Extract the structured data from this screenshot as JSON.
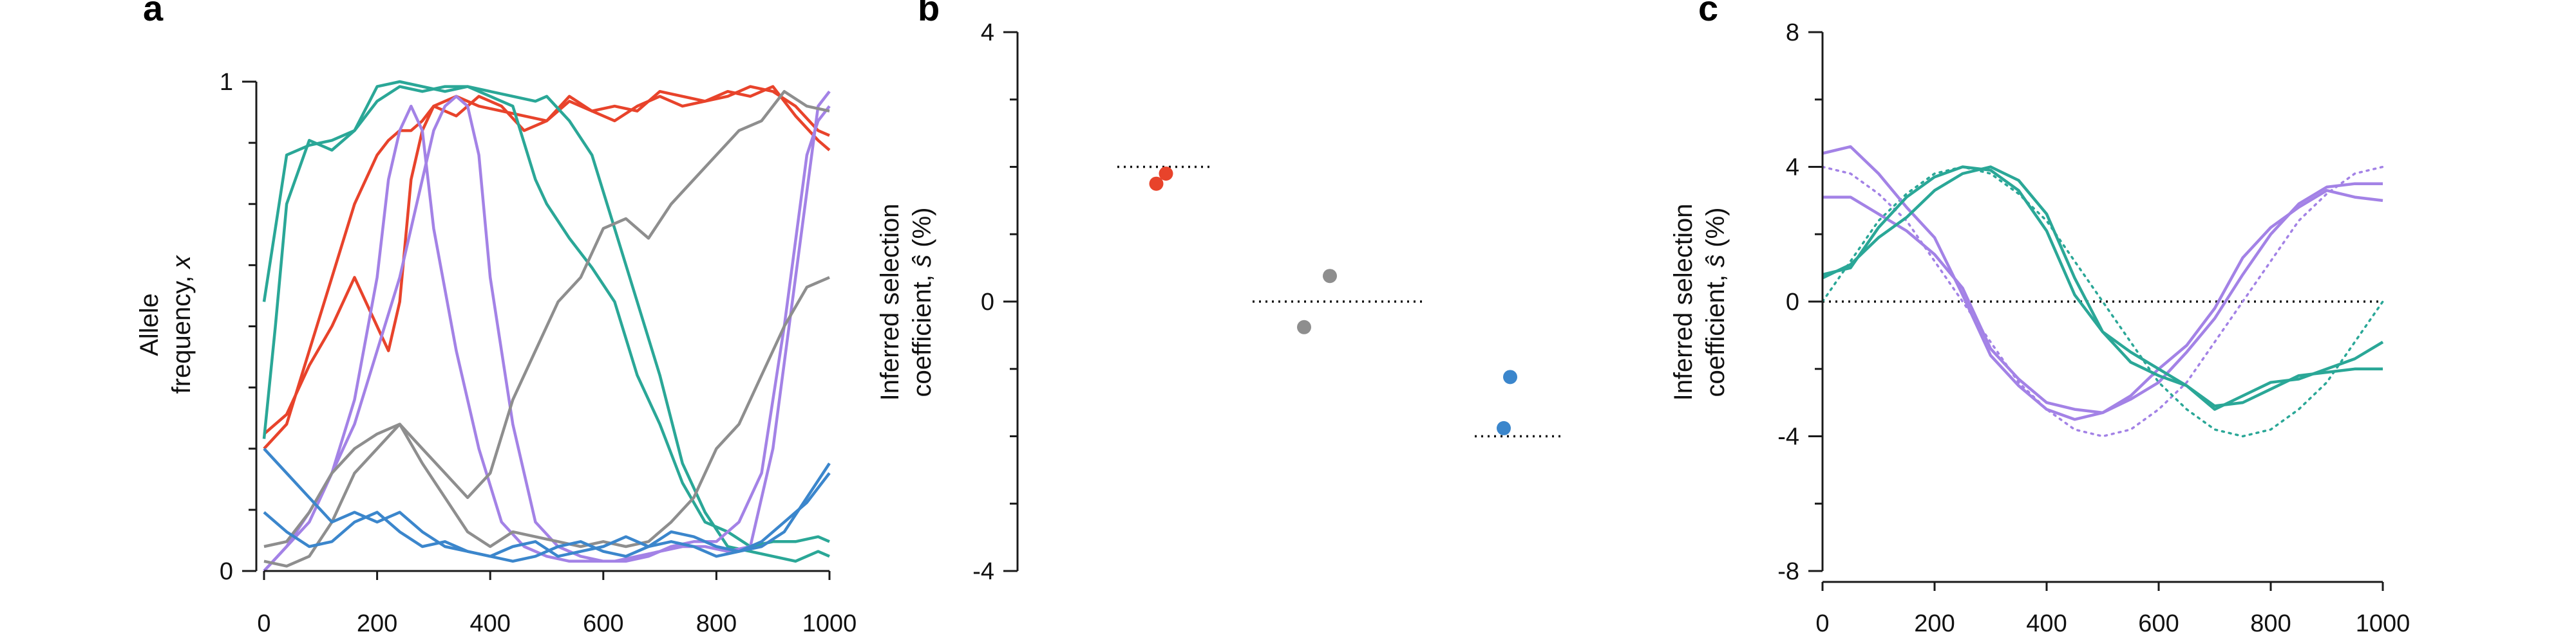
{
  "colors": {
    "red": "#e8432b",
    "teal": "#2aa797",
    "purple": "#a382e6",
    "gray": "#8e8e8e",
    "blue": "#3b86cc",
    "axis": "#1a1a1a"
  },
  "chart_data": [
    {
      "panel": "a",
      "type": "line",
      "ylabel_line1": "Allele",
      "ylabel_line2": "frequency, ",
      "ylabel_var": "x",
      "xlim": [
        0,
        1000
      ],
      "ylim": [
        0,
        1
      ],
      "xticks": [
        0,
        200,
        400,
        600,
        800,
        1000
      ],
      "yticks": [
        0,
        1
      ],
      "ytick_labels": [
        "0",
        "1"
      ],
      "series": [
        {
          "color": "red",
          "x": [
            0,
            40,
            80,
            120,
            160,
            200,
            220,
            240,
            260,
            280,
            300,
            340,
            380,
            420,
            460,
            500,
            540,
            580,
            620,
            660,
            700,
            740,
            780,
            820,
            860,
            900,
            940,
            980,
            1000
          ],
          "y": [
            0.25,
            0.3,
            0.45,
            0.6,
            0.75,
            0.85,
            0.88,
            0.9,
            0.9,
            0.92,
            0.95,
            0.97,
            0.95,
            0.94,
            0.93,
            0.92,
            0.96,
            0.94,
            0.92,
            0.95,
            0.97,
            0.95,
            0.96,
            0.97,
            0.99,
            0.98,
            0.95,
            0.9,
            0.89
          ]
        },
        {
          "color": "red",
          "x": [
            0,
            40,
            80,
            120,
            160,
            200,
            220,
            240,
            260,
            280,
            300,
            340,
            380,
            420,
            460,
            500,
            540,
            580,
            620,
            660,
            700,
            740,
            780,
            820,
            860,
            900,
            940,
            980,
            1000
          ],
          "y": [
            0.28,
            0.32,
            0.42,
            0.5,
            0.6,
            0.5,
            0.45,
            0.55,
            0.8,
            0.9,
            0.95,
            0.93,
            0.97,
            0.95,
            0.9,
            0.92,
            0.97,
            0.94,
            0.95,
            0.94,
            0.98,
            0.97,
            0.96,
            0.98,
            0.97,
            0.99,
            0.93,
            0.88,
            0.86
          ]
        },
        {
          "color": "teal",
          "x": [
            0,
            20,
            40,
            80,
            120,
            160,
            200,
            240,
            280,
            320,
            360,
            400,
            440,
            480,
            500,
            540,
            580,
            620,
            660,
            700,
            740,
            780,
            820,
            860,
            900,
            940,
            980,
            1000
          ],
          "y": [
            0.55,
            0.7,
            0.85,
            0.87,
            0.88,
            0.9,
            0.99,
            1.0,
            0.99,
            0.98,
            0.99,
            0.97,
            0.95,
            0.8,
            0.75,
            0.68,
            0.62,
            0.55,
            0.4,
            0.3,
            0.18,
            0.1,
            0.08,
            0.05,
            0.06,
            0.06,
            0.07,
            0.06
          ]
        },
        {
          "color": "teal",
          "x": [
            0,
            20,
            40,
            80,
            120,
            160,
            200,
            240,
            280,
            320,
            360,
            400,
            440,
            480,
            500,
            540,
            580,
            620,
            660,
            700,
            740,
            780,
            820,
            860,
            900,
            940,
            980,
            1000
          ],
          "y": [
            0.27,
            0.5,
            0.75,
            0.88,
            0.86,
            0.9,
            0.96,
            0.99,
            0.98,
            0.99,
            0.99,
            0.98,
            0.97,
            0.96,
            0.97,
            0.92,
            0.85,
            0.7,
            0.55,
            0.4,
            0.22,
            0.12,
            0.05,
            0.04,
            0.03,
            0.02,
            0.04,
            0.03
          ]
        },
        {
          "color": "purple",
          "x": [
            0,
            40,
            80,
            120,
            160,
            200,
            220,
            240,
            260,
            280,
            300,
            340,
            380,
            420,
            460,
            500,
            540,
            580,
            620,
            660,
            700,
            740,
            780,
            820,
            860,
            900,
            940,
            980,
            1000
          ],
          "y": [
            0.0,
            0.05,
            0.1,
            0.2,
            0.35,
            0.6,
            0.8,
            0.9,
            0.95,
            0.9,
            0.7,
            0.45,
            0.25,
            0.1,
            0.05,
            0.03,
            0.02,
            0.02,
            0.02,
            0.03,
            0.04,
            0.05,
            0.05,
            0.04,
            0.05,
            0.25,
            0.6,
            0.95,
            0.98
          ]
        },
        {
          "color": "purple",
          "x": [
            0,
            40,
            80,
            120,
            160,
            200,
            240,
            280,
            300,
            320,
            340,
            360,
            380,
            400,
            440,
            480,
            520,
            560,
            600,
            640,
            680,
            720,
            760,
            800,
            840,
            880,
            920,
            960,
            980,
            1000
          ],
          "y": [
            0.0,
            0.05,
            0.12,
            0.2,
            0.3,
            0.45,
            0.6,
            0.8,
            0.9,
            0.95,
            0.97,
            0.95,
            0.85,
            0.6,
            0.3,
            0.1,
            0.05,
            0.03,
            0.02,
            0.02,
            0.03,
            0.05,
            0.06,
            0.06,
            0.1,
            0.2,
            0.5,
            0.85,
            0.92,
            0.95
          ]
        },
        {
          "color": "gray",
          "x": [
            0,
            40,
            80,
            120,
            160,
            200,
            240,
            280,
            320,
            360,
            400,
            440,
            480,
            520,
            560,
            600,
            640,
            680,
            720,
            760,
            800,
            840,
            880,
            920,
            960,
            1000
          ],
          "y": [
            0.02,
            0.01,
            0.03,
            0.1,
            0.2,
            0.25,
            0.3,
            0.25,
            0.2,
            0.15,
            0.2,
            0.35,
            0.45,
            0.55,
            0.6,
            0.7,
            0.72,
            0.68,
            0.75,
            0.8,
            0.85,
            0.9,
            0.92,
            0.98,
            0.95,
            0.94
          ]
        },
        {
          "color": "gray",
          "x": [
            0,
            40,
            80,
            120,
            160,
            200,
            240,
            280,
            320,
            360,
            400,
            440,
            480,
            520,
            560,
            600,
            640,
            680,
            720,
            760,
            800,
            840,
            880,
            920,
            960,
            1000
          ],
          "y": [
            0.05,
            0.06,
            0.12,
            0.2,
            0.25,
            0.28,
            0.3,
            0.22,
            0.15,
            0.08,
            0.05,
            0.08,
            0.07,
            0.06,
            0.05,
            0.06,
            0.05,
            0.06,
            0.1,
            0.15,
            0.25,
            0.3,
            0.4,
            0.5,
            0.58,
            0.6
          ]
        },
        {
          "color": "blue",
          "x": [
            0,
            40,
            80,
            120,
            160,
            200,
            240,
            280,
            320,
            360,
            400,
            440,
            480,
            520,
            560,
            600,
            640,
            680,
            720,
            760,
            800,
            840,
            880,
            920,
            960,
            1000
          ],
          "y": [
            0.25,
            0.2,
            0.15,
            0.1,
            0.12,
            0.1,
            0.12,
            0.08,
            0.05,
            0.04,
            0.03,
            0.05,
            0.06,
            0.03,
            0.04,
            0.05,
            0.07,
            0.05,
            0.06,
            0.05,
            0.03,
            0.04,
            0.05,
            0.08,
            0.15,
            0.22
          ]
        },
        {
          "color": "blue",
          "x": [
            0,
            40,
            80,
            120,
            160,
            200,
            240,
            280,
            320,
            360,
            400,
            440,
            480,
            520,
            560,
            600,
            640,
            680,
            720,
            760,
            800,
            840,
            880,
            920,
            960,
            1000
          ],
          "y": [
            0.12,
            0.08,
            0.05,
            0.06,
            0.1,
            0.12,
            0.08,
            0.05,
            0.06,
            0.04,
            0.03,
            0.02,
            0.03,
            0.05,
            0.06,
            0.04,
            0.03,
            0.05,
            0.08,
            0.07,
            0.05,
            0.04,
            0.06,
            0.1,
            0.14,
            0.2
          ]
        }
      ]
    },
    {
      "panel": "b",
      "type": "scatter",
      "ylabel_line1": "Inferred selection",
      "ylabel_line2": "coefficient, ",
      "ylabel_var": "ŝ",
      "ylabel_suffix": " (%)",
      "ylim": [
        -4,
        4
      ],
      "yticks": [
        -4,
        0,
        4
      ],
      "groups": [
        {
          "color": "red",
          "true_value": 2,
          "points": [
            1.75,
            1.9
          ]
        },
        {
          "color": "gray",
          "true_value": 0,
          "points": [
            -0.38,
            0.38
          ]
        },
        {
          "color": "blue",
          "true_value": -2,
          "points": [
            -1.88,
            -1.12
          ]
        }
      ]
    },
    {
      "panel": "c",
      "type": "line",
      "ylabel_line1": "Inferred selection",
      "ylabel_line2": "coefficient, ",
      "ylabel_var": "ŝ",
      "ylabel_suffix": " (%)",
      "xlim": [
        0,
        1000
      ],
      "ylim": [
        -8,
        8
      ],
      "xticks": [
        0,
        200,
        400,
        600,
        800,
        1000
      ],
      "yticks": [
        -8,
        -4,
        0,
        4,
        8
      ],
      "true_curves": [
        {
          "color": "purple",
          "x": [
            0,
            50,
            100,
            150,
            200,
            250,
            300,
            350,
            400,
            450,
            500,
            550,
            600,
            650,
            700,
            750,
            800,
            850,
            900,
            950,
            1000
          ],
          "y": [
            4.0,
            3.8,
            3.2,
            2.4,
            1.2,
            0.0,
            -1.2,
            -2.4,
            -3.2,
            -3.8,
            -4.0,
            -3.8,
            -3.2,
            -2.4,
            -1.2,
            0.0,
            1.2,
            2.4,
            3.2,
            3.8,
            4.0
          ]
        },
        {
          "color": "teal",
          "x": [
            0,
            50,
            100,
            150,
            200,
            250,
            300,
            350,
            400,
            450,
            500,
            550,
            600,
            650,
            700,
            750,
            800,
            850,
            900,
            950,
            1000
          ],
          "y": [
            0.0,
            1.2,
            2.4,
            3.2,
            3.8,
            4.0,
            3.8,
            3.2,
            2.4,
            1.2,
            0.0,
            -1.2,
            -2.4,
            -3.2,
            -3.8,
            -4.0,
            -3.8,
            -3.2,
            -2.4,
            -1.2,
            0.0
          ]
        }
      ],
      "series": [
        {
          "color": "purple",
          "x": [
            0,
            50,
            100,
            150,
            200,
            250,
            300,
            350,
            400,
            450,
            500,
            550,
            600,
            650,
            700,
            750,
            800,
            850,
            900,
            950,
            1000
          ],
          "y": [
            4.4,
            4.6,
            3.8,
            2.8,
            1.9,
            0.2,
            -1.6,
            -2.5,
            -3.2,
            -3.5,
            -3.3,
            -2.9,
            -2.4,
            -1.5,
            -0.5,
            0.8,
            2.0,
            2.9,
            3.4,
            3.5,
            3.5
          ]
        },
        {
          "color": "purple",
          "x": [
            0,
            50,
            100,
            150,
            200,
            250,
            300,
            350,
            400,
            450,
            500,
            550,
            600,
            650,
            700,
            750,
            800,
            850,
            900,
            950,
            1000
          ],
          "y": [
            3.1,
            3.1,
            2.6,
            2.1,
            1.4,
            0.4,
            -1.4,
            -2.3,
            -3.0,
            -3.2,
            -3.3,
            -2.8,
            -2.0,
            -1.3,
            -0.2,
            1.3,
            2.2,
            2.8,
            3.3,
            3.1,
            3.0
          ]
        },
        {
          "color": "teal",
          "x": [
            0,
            50,
            100,
            150,
            200,
            250,
            300,
            350,
            400,
            450,
            500,
            550,
            600,
            650,
            700,
            750,
            800,
            850,
            900,
            950,
            1000
          ],
          "y": [
            0.8,
            1.0,
            2.2,
            3.1,
            3.7,
            4.0,
            3.9,
            3.3,
            2.1,
            0.2,
            -0.9,
            -1.5,
            -2.0,
            -2.5,
            -3.1,
            -3.0,
            -2.6,
            -2.2,
            -2.1,
            -2.0,
            -2.0
          ]
        },
        {
          "color": "teal",
          "x": [
            0,
            50,
            100,
            150,
            200,
            250,
            300,
            350,
            400,
            450,
            500,
            550,
            600,
            650,
            700,
            750,
            800,
            850,
            900,
            950,
            1000
          ],
          "y": [
            0.7,
            1.1,
            1.9,
            2.5,
            3.3,
            3.8,
            4.0,
            3.6,
            2.6,
            0.7,
            -0.9,
            -1.8,
            -2.2,
            -2.5,
            -3.2,
            -2.8,
            -2.4,
            -2.3,
            -2.0,
            -1.7,
            -1.2
          ]
        }
      ]
    }
  ],
  "panel_labels": [
    "a",
    "b",
    "c"
  ]
}
